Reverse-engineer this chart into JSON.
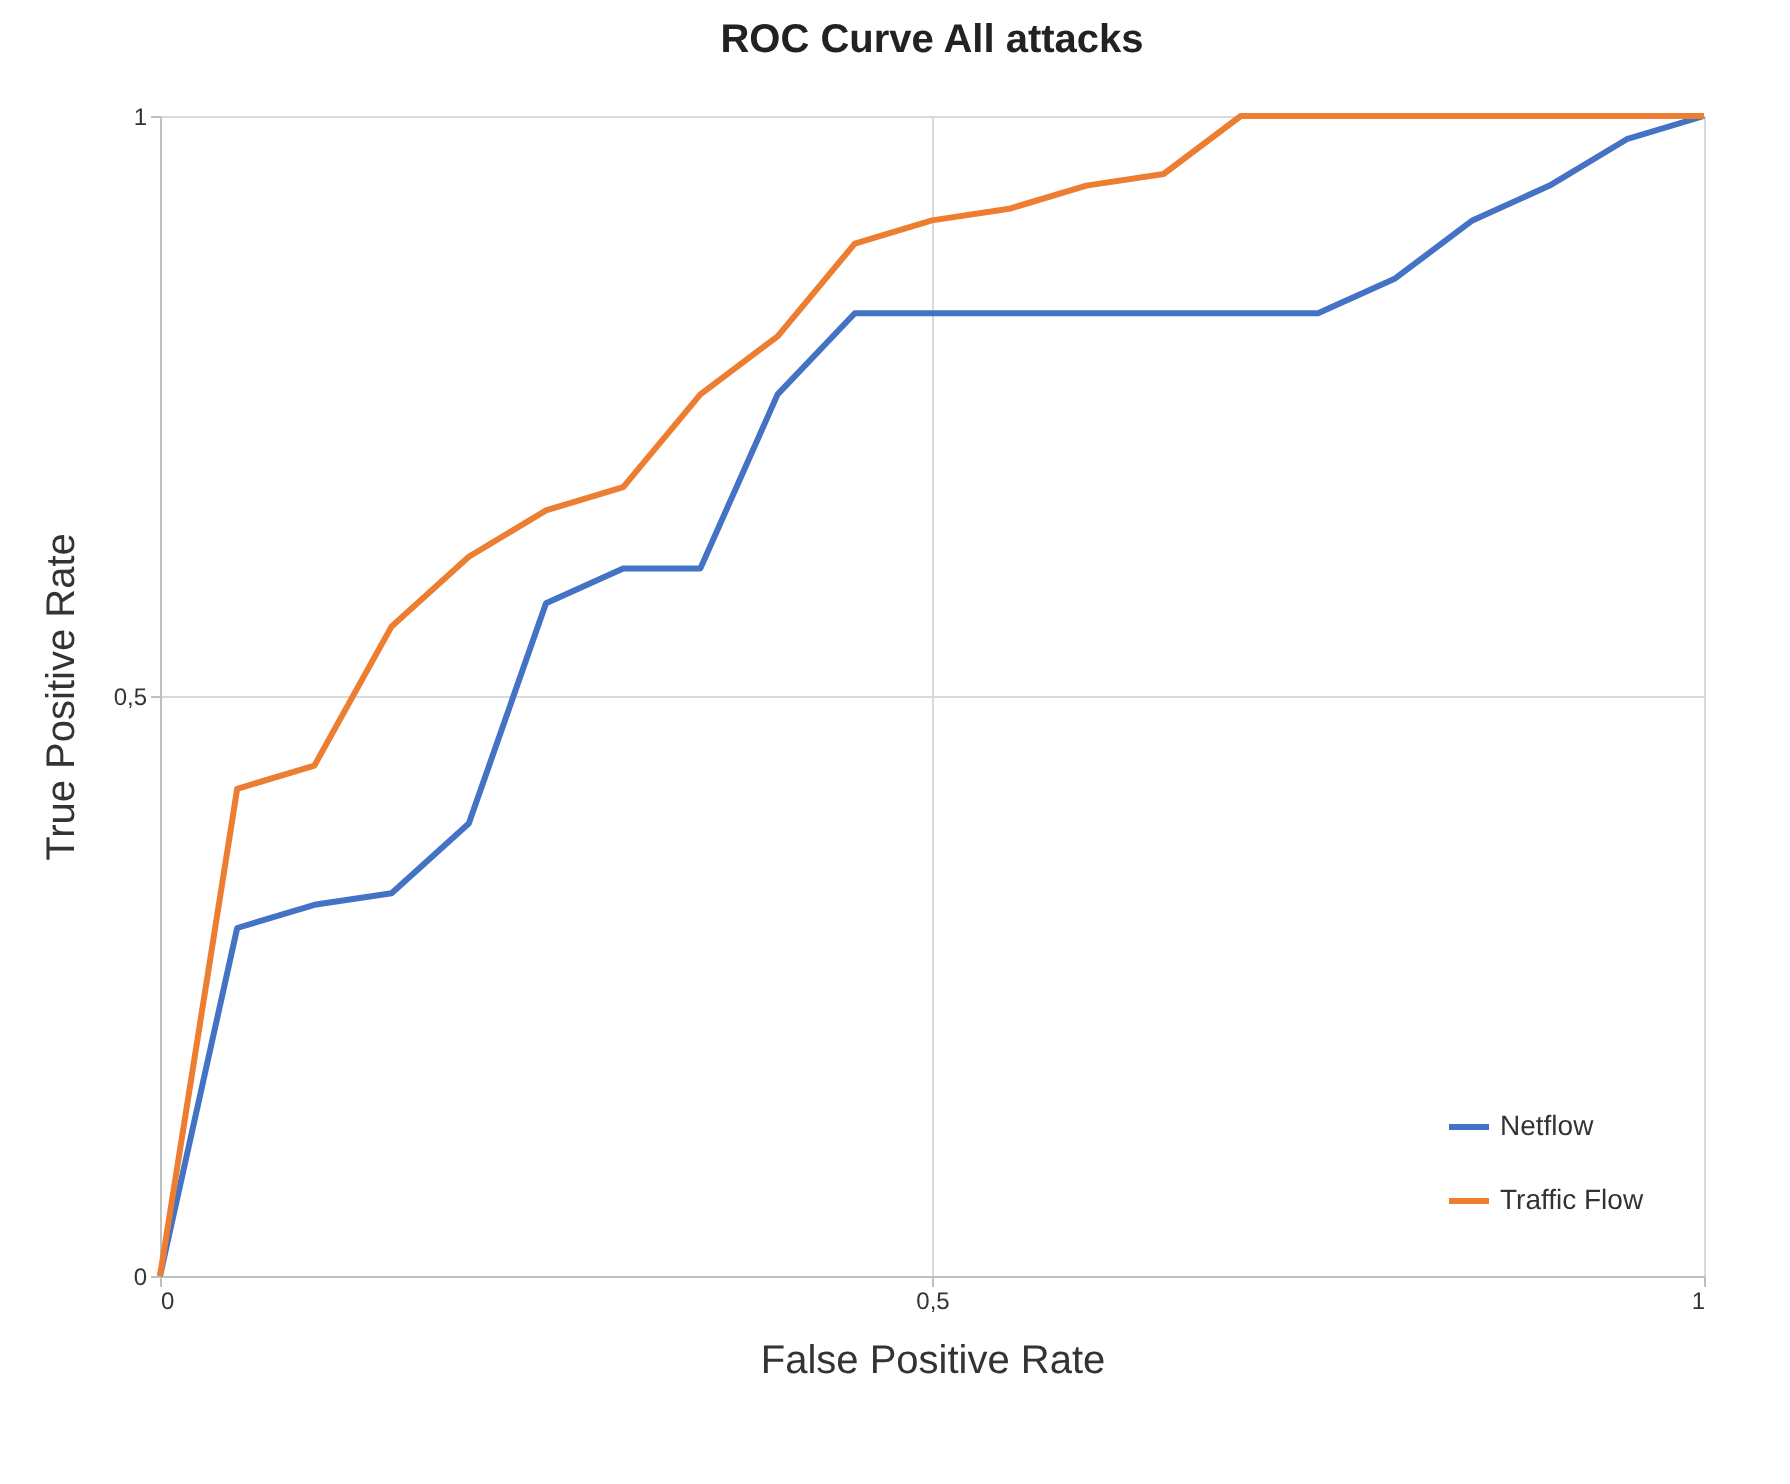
{
  "chart_data": {
    "type": "line",
    "title": "ROC Curve All attacks",
    "xlabel": "False Positive Rate",
    "ylabel": "True Positive Rate",
    "x": [
      0,
      0.05,
      0.1,
      0.15,
      0.2,
      0.25,
      0.3,
      0.35,
      0.4,
      0.45,
      0.5,
      0.55,
      0.6,
      0.65,
      0.7,
      0.75,
      0.8,
      0.85,
      0.9,
      0.95,
      1
    ],
    "series": [
      {
        "name": "Netflow",
        "color": "#4472c4",
        "values": [
          0,
          0.3,
          0.32,
          0.33,
          0.39,
          0.58,
          0.61,
          0.61,
          0.76,
          0.83,
          0.83,
          0.83,
          0.83,
          0.83,
          0.83,
          0.83,
          0.86,
          0.91,
          0.94,
          0.98,
          1
        ]
      },
      {
        "name": "Traffic Flow",
        "color": "#ed7d31",
        "values": [
          0,
          0.42,
          0.44,
          0.56,
          0.62,
          0.66,
          0.68,
          0.76,
          0.81,
          0.89,
          0.91,
          0.92,
          0.94,
          0.95,
          1,
          1,
          1,
          1,
          1,
          1,
          1
        ]
      }
    ],
    "xlim": [
      0,
      1
    ],
    "ylim": [
      0,
      1
    ],
    "xticks": [
      0,
      {
        "value": 0.5,
        "label": "0,5"
      },
      1
    ],
    "yticks": [
      0,
      {
        "value": 0.5,
        "label": "0,5"
      },
      1
    ],
    "grid": true,
    "legend": "bottom right",
    "marker": "none",
    "line_style": "solid"
  }
}
